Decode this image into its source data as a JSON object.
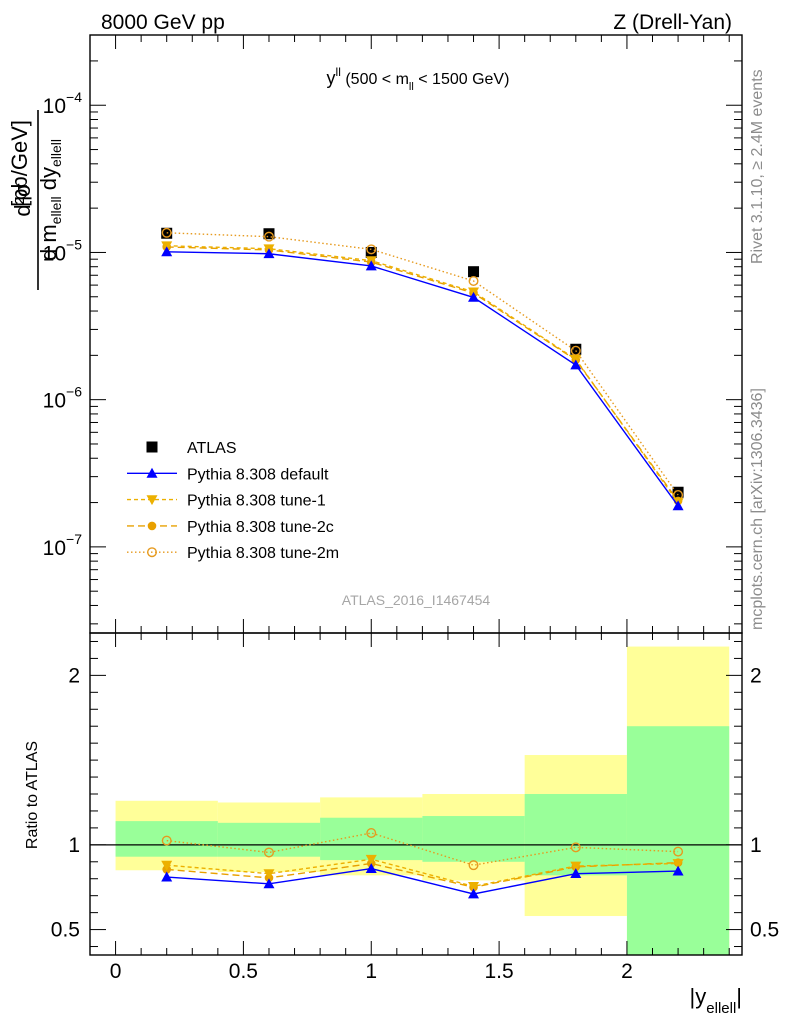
{
  "header": {
    "left": "8000 GeV pp",
    "right": "Z (Drell-Yan)"
  },
  "side": {
    "rivet": "Rivet 3.1.10, ≥ 2.4M events",
    "mcplots": "mcplots.cern.ch [arXiv:1306.3436]"
  },
  "chart_data": {
    "type": "line",
    "analysis_label": "ATLAS_2016_I1467454",
    "panel_title": {
      "main": "y",
      "main_sup": "ll",
      "cut_open": " (500 < m",
      "cut_sub": "ll",
      "cut_close": " < 1500 GeV)"
    },
    "ylabel": {
      "numerator": "d²σ",
      "denominator": "d m",
      "sub1": "ellell",
      "mid": " dy",
      "sub2": "ellell",
      "unit": "[pb/GeV]"
    },
    "xlabel": {
      "base": "|y",
      "sub": "ellell",
      "close": "|"
    },
    "ratio_ylabel": "Ratio to ATLAS",
    "xlim": [
      -0.1,
      2.45
    ],
    "ylim": [
      2.6e-08,
      0.0003
    ],
    "yscale": "log",
    "ratio_ylim": [
      0.35,
      2.25
    ],
    "x_ticks": [
      {
        "v": 0,
        "label": "0"
      },
      {
        "v": 0.5,
        "label": "0.5"
      },
      {
        "v": 1,
        "label": "1"
      },
      {
        "v": 1.5,
        "label": "1.5"
      },
      {
        "v": 2,
        "label": "2"
      }
    ],
    "y_ticks": [
      {
        "v": 0.0001,
        "base": "10",
        "exp": "−4"
      },
      {
        "v": 1e-05,
        "base": "10",
        "exp": "−5"
      },
      {
        "v": 1e-06,
        "base": "10",
        "exp": "−6"
      },
      {
        "v": 1e-07,
        "base": "10",
        "exp": "−7"
      }
    ],
    "ratio_ticks": [
      {
        "v": 0.5,
        "label": "0.5"
      },
      {
        "v": 1,
        "label": "1"
      },
      {
        "v": 2,
        "label": "2"
      }
    ],
    "bins": [
      {
        "lo": 0.0,
        "hi": 0.4,
        "x": 0.2
      },
      {
        "lo": 0.4,
        "hi": 0.8,
        "x": 0.6
      },
      {
        "lo": 0.8,
        "hi": 1.2,
        "x": 1.0
      },
      {
        "lo": 1.2,
        "hi": 1.6,
        "x": 1.4
      },
      {
        "lo": 1.6,
        "hi": 2.0,
        "x": 1.8
      },
      {
        "lo": 2.0,
        "hi": 2.4,
        "x": 2.2
      }
    ],
    "data": {
      "name": "ATLAS",
      "values": [
        1.35e-05,
        1.34e-05,
        1e-05,
        7.4e-06,
        2.2e-06,
        2.35e-07
      ]
    },
    "bands": {
      "yellow": [
        [
          0.85,
          1.26
        ],
        [
          0.84,
          1.25
        ],
        [
          0.82,
          1.28
        ],
        [
          0.79,
          1.3
        ],
        [
          0.58,
          1.53
        ],
        [
          0.35,
          2.17
        ]
      ],
      "green": [
        [
          0.93,
          1.14
        ],
        [
          0.93,
          1.13
        ],
        [
          0.91,
          1.16
        ],
        [
          0.9,
          1.17
        ],
        [
          0.82,
          1.3
        ],
        [
          0.35,
          1.7
        ]
      ]
    },
    "series": [
      {
        "name": "Pythia 8.308 default",
        "color": "#0000ff",
        "marker": "triangle-up",
        "dash": "",
        "values": [
          1.01e-05,
          9.8e-06,
          8.1e-06,
          4.95e-06,
          1.72e-06,
          1.9e-07
        ],
        "ratio": [
          0.81,
          0.77,
          0.86,
          0.71,
          0.83,
          0.845
        ]
      },
      {
        "name": "Pythia 8.308 tune-1",
        "color": "#ecb000",
        "marker": "triangle-down",
        "dash": "4,3",
        "values": [
          1.11e-05,
          1.06e-05,
          8.8e-06,
          5.4e-06,
          1.88e-06,
          2e-07
        ],
        "ratio": [
          0.88,
          0.83,
          0.915,
          0.755,
          0.875,
          0.89
        ]
      },
      {
        "name": "Pythia 8.308 tune-2c",
        "color": "#e8a000",
        "marker": "circle",
        "dash": "7,4",
        "values": [
          1.09e-05,
          1.04e-05,
          8.6e-06,
          5.3e-06,
          1.86e-06,
          2.05e-07
        ],
        "ratio": [
          0.855,
          0.805,
          0.89,
          0.75,
          0.87,
          0.895
        ]
      },
      {
        "name": "Pythia 8.308 tune-2m",
        "color": "#e69a1e",
        "marker": "circle-open",
        "dash": "1.5,2.5",
        "values": [
          1.36e-05,
          1.28e-05,
          1.05e-05,
          6.4e-06,
          2.15e-06,
          2.25e-07
        ],
        "ratio": [
          1.025,
          0.955,
          1.07,
          0.88,
          0.985,
          0.96
        ]
      }
    ]
  }
}
